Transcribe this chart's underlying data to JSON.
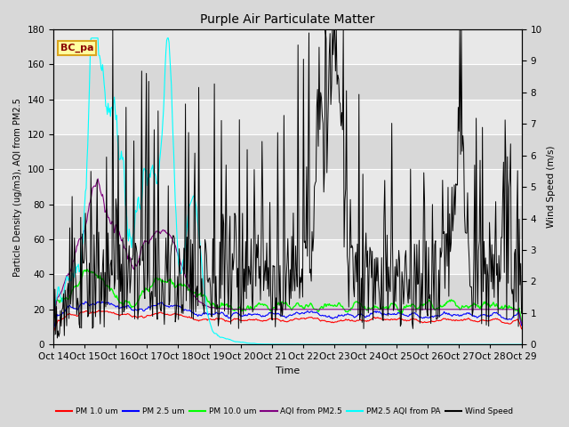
{
  "title": "Purple Air Particulate Matter",
  "xlabel": "Time",
  "ylabel_left": "Particle Density (ug/m3), AQI from PM2.5",
  "ylabel_right": "Wind Speed (m/s)",
  "ylim_left": [
    0,
    180
  ],
  "ylim_right": [
    0.0,
    10.0
  ],
  "yticks_left": [
    0,
    20,
    40,
    60,
    80,
    100,
    120,
    140,
    160,
    180
  ],
  "yticks_right": [
    0.0,
    1.0,
    2.0,
    3.0,
    4.0,
    5.0,
    6.0,
    7.0,
    8.0,
    9.0,
    10.0
  ],
  "x_tick_labels": [
    "Oct 14",
    "Oct 15",
    "Oct 16",
    "Oct 17",
    "Oct 18",
    "Oct 19",
    "Oct 20",
    "Oct 21",
    "Oct 22",
    "Oct 23",
    "Oct 24",
    "Oct 25",
    "Oct 26",
    "Oct 27",
    "Oct 28",
    "Oct 29"
  ],
  "annotation_text": "BC_pa",
  "annotation_color": "#8B0000",
  "annotation_bg": "#FFFFA0",
  "annotation_border": "#DAA520",
  "legend_entries": [
    {
      "label": "PM 1.0 um",
      "color": "red"
    },
    {
      "label": "PM 2.5 um",
      "color": "blue"
    },
    {
      "label": "PM 10.0 um",
      "color": "lime"
    },
    {
      "label": "AQI from PM2.5",
      "color": "purple"
    },
    {
      "label": "PM2.5 AQI from PA",
      "color": "cyan"
    },
    {
      "label": "Wind Speed",
      "color": "black"
    }
  ],
  "background_color": "#d8d8d8",
  "plot_bg": "#e8e8e8",
  "alt_band_color": "#d8d8d8",
  "grid_color": "white",
  "num_points": 600
}
